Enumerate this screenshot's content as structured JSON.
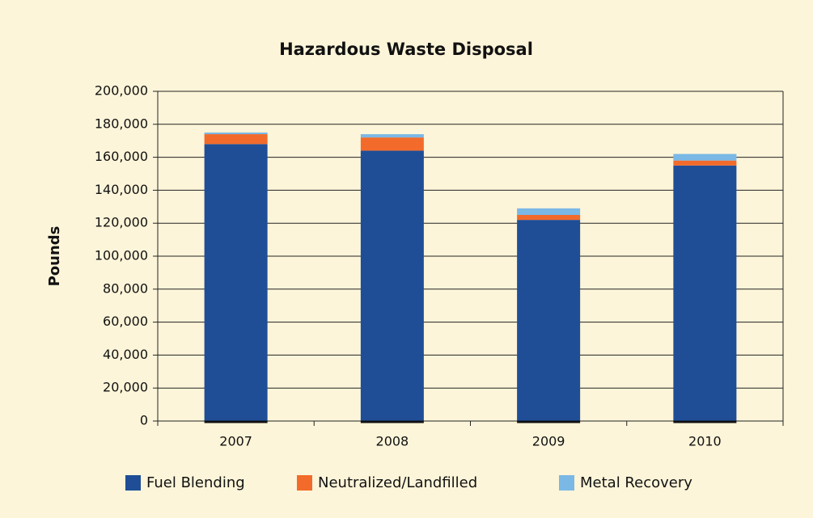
{
  "chart_data": {
    "type": "stacked_bar",
    "title": "Hazardous Waste Disposal",
    "y_label": "Pounds",
    "categories": [
      "2007",
      "2008",
      "2009",
      "2010"
    ],
    "series": [
      {
        "name": "Fuel Blending",
        "color": "#1f4e97",
        "values": [
          168000,
          164000,
          122000,
          155000
        ]
      },
      {
        "name": "Neutralized/Landfilled",
        "color": "#f26b2b",
        "values": [
          6000,
          8000,
          3000,
          3000
        ]
      },
      {
        "name": "Metal Recovery",
        "color": "#7ab8e6",
        "values": [
          1000,
          2000,
          4000,
          4000
        ]
      }
    ],
    "ylim": [
      0,
      200000
    ],
    "yticks": [
      0,
      {
        "value": 20000,
        "label": "20,000"
      },
      {
        "value": 40000,
        "label": "40,000"
      },
      {
        "value": 60000,
        "label": "60,000"
      },
      {
        "value": 80000,
        "label": "80,000"
      },
      {
        "value": 100000,
        "label": "100,000"
      },
      {
        "value": 120000,
        "label": "120,000"
      },
      {
        "value": 140000,
        "label": "140,000"
      },
      {
        "value": 160000,
        "label": "160,000"
      },
      {
        "value": 180000,
        "label": "180,000"
      },
      {
        "value": 200000,
        "label": "200,000"
      }
    ],
    "grid": true,
    "legend": "bottom"
  }
}
